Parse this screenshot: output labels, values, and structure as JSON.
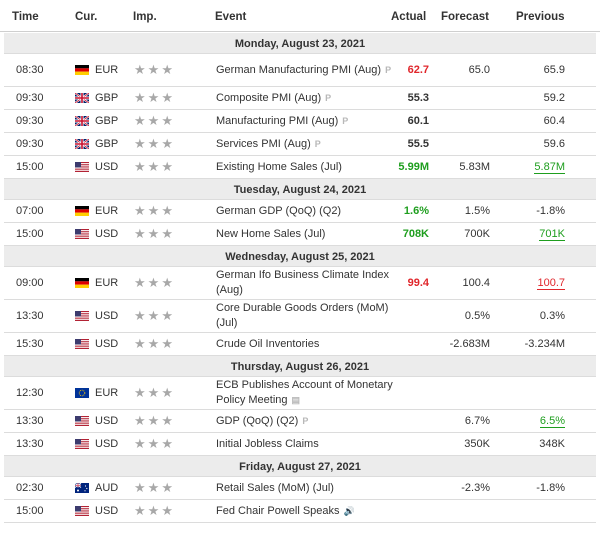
{
  "header": {
    "time": "Time",
    "currency": "Cur.",
    "importance": "Imp.",
    "event": "Event",
    "actual": "Actual",
    "forecast": "Forecast",
    "previous": "Previous"
  },
  "colors": {
    "positive": "#1e9e1e",
    "negative": "#e0262b",
    "star": "#a8a8a8",
    "day_bg": "#ececec"
  },
  "days": [
    {
      "label": "Monday, August 23, 2021",
      "events": [
        {
          "time": "08:30",
          "flag": "de",
          "currency": "EUR",
          "event": "German Manufacturing PMI (Aug)",
          "icon": "preliminary-icon",
          "icon_label": "P",
          "actual": "62.7",
          "actual_color": "red",
          "forecast": "65.0",
          "previous": "65.9",
          "previous_color": ""
        },
        {
          "time": "09:30",
          "flag": "gb",
          "currency": "GBP",
          "event": "Composite PMI (Aug)",
          "icon": "preliminary-icon",
          "icon_label": "P",
          "actual": "55.3",
          "actual_color": "",
          "forecast": "",
          "previous": "59.2",
          "previous_color": ""
        },
        {
          "time": "09:30",
          "flag": "gb",
          "currency": "GBP",
          "event": "Manufacturing PMI (Aug)",
          "icon": "preliminary-icon",
          "icon_label": "P",
          "actual": "60.1",
          "actual_color": "",
          "forecast": "",
          "previous": "60.4",
          "previous_color": ""
        },
        {
          "time": "09:30",
          "flag": "gb",
          "currency": "GBP",
          "event": "Services PMI (Aug)",
          "icon": "preliminary-icon",
          "icon_label": "P",
          "actual": "55.5",
          "actual_color": "",
          "forecast": "",
          "previous": "59.6",
          "previous_color": ""
        },
        {
          "time": "15:00",
          "flag": "us",
          "currency": "USD",
          "event": "Existing Home Sales (Jul)",
          "icon": "",
          "icon_label": "",
          "actual": "5.99M",
          "actual_color": "green",
          "forecast": "5.83M",
          "previous": "5.87M",
          "previous_color": "green"
        }
      ]
    },
    {
      "label": "Tuesday, August 24, 2021",
      "events": [
        {
          "time": "07:00",
          "flag": "de",
          "currency": "EUR",
          "event": "German GDP (QoQ) (Q2)",
          "icon": "",
          "icon_label": "",
          "actual": "1.6%",
          "actual_color": "green",
          "forecast": "1.5%",
          "previous": "-1.8%",
          "previous_color": ""
        },
        {
          "time": "15:00",
          "flag": "us",
          "currency": "USD",
          "event": "New Home Sales (Jul)",
          "icon": "",
          "icon_label": "",
          "actual": "708K",
          "actual_color": "green",
          "forecast": "700K",
          "previous": "701K",
          "previous_color": "green"
        }
      ]
    },
    {
      "label": "Wednesday, August 25, 2021",
      "events": [
        {
          "time": "09:00",
          "flag": "de",
          "currency": "EUR",
          "event": "German Ifo Business Climate Index (Aug)",
          "icon": "",
          "icon_label": "",
          "actual": "99.4",
          "actual_color": "red",
          "forecast": "100.4",
          "previous": "100.7",
          "previous_color": "red"
        },
        {
          "time": "13:30",
          "flag": "us",
          "currency": "USD",
          "event": "Core Durable Goods Orders (MoM) (Jul)",
          "icon": "",
          "icon_label": "",
          "actual": "",
          "actual_color": "",
          "forecast": "0.5%",
          "previous": "0.3%",
          "previous_color": ""
        },
        {
          "time": "15:30",
          "flag": "us",
          "currency": "USD",
          "event": "Crude Oil Inventories",
          "icon": "",
          "icon_label": "",
          "actual": "",
          "actual_color": "",
          "forecast": "-2.683M",
          "previous": "-3.234M",
          "previous_color": ""
        }
      ]
    },
    {
      "label": "Thursday, August 26, 2021",
      "events": [
        {
          "time": "12:30",
          "flag": "eu",
          "currency": "EUR",
          "event": "ECB Publishes Account of Monetary Policy Meeting",
          "icon": "document-icon",
          "icon_label": "▤",
          "actual": "",
          "actual_color": "",
          "forecast": "",
          "previous": "",
          "previous_color": ""
        },
        {
          "time": "13:30",
          "flag": "us",
          "currency": "USD",
          "event": "GDP (QoQ) (Q2)",
          "icon": "preliminary-icon",
          "icon_label": "P",
          "actual": "",
          "actual_color": "",
          "forecast": "6.7%",
          "previous": "6.5%",
          "previous_color": "green"
        },
        {
          "time": "13:30",
          "flag": "us",
          "currency": "USD",
          "event": "Initial Jobless Claims",
          "icon": "",
          "icon_label": "",
          "actual": "",
          "actual_color": "",
          "forecast": "350K",
          "previous": "348K",
          "previous_color": ""
        }
      ]
    },
    {
      "label": "Friday, August 27, 2021",
      "events": [
        {
          "time": "02:30",
          "flag": "au",
          "currency": "AUD",
          "event": "Retail Sales (MoM) (Jul)",
          "icon": "",
          "icon_label": "",
          "actual": "",
          "actual_color": "",
          "forecast": "-2.3%",
          "previous": "-1.8%",
          "previous_color": ""
        },
        {
          "time": "15:00",
          "flag": "us",
          "currency": "USD",
          "event": "Fed Chair Powell Speaks",
          "icon": "speaker-icon",
          "icon_label": "🔊",
          "actual": "",
          "actual_color": "",
          "forecast": "",
          "previous": "",
          "previous_color": ""
        }
      ]
    }
  ]
}
